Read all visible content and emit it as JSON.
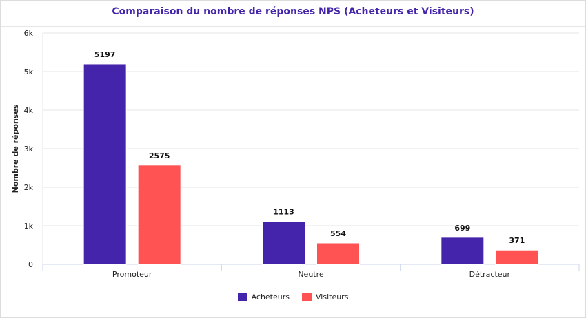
{
  "chart_data": {
    "type": "bar",
    "title": "Comparaison du nombre de réponses NPS (Acheteurs et Visiteurs)",
    "xlabel": "",
    "ylabel": "Nombre de réponses",
    "categories": [
      "Promoteur",
      "Neutre",
      "Détracteur"
    ],
    "series": [
      {
        "name": "Acheteurs",
        "values": [
          5197,
          1113,
          699
        ],
        "color": "#4324ab"
      },
      {
        "name": "Visiteurs",
        "values": [
          2575,
          554,
          371
        ],
        "color": "#ff5252"
      }
    ],
    "ylim": [
      0,
      6000
    ],
    "yticks": [
      0,
      1000,
      2000,
      3000,
      4000,
      5000,
      6000
    ],
    "ytick_labels": [
      "0",
      "1k",
      "2k",
      "3k",
      "4k",
      "5k",
      "6k"
    ],
    "grid": true,
    "legend": "bottom-center",
    "title_color": "#4324ab"
  }
}
